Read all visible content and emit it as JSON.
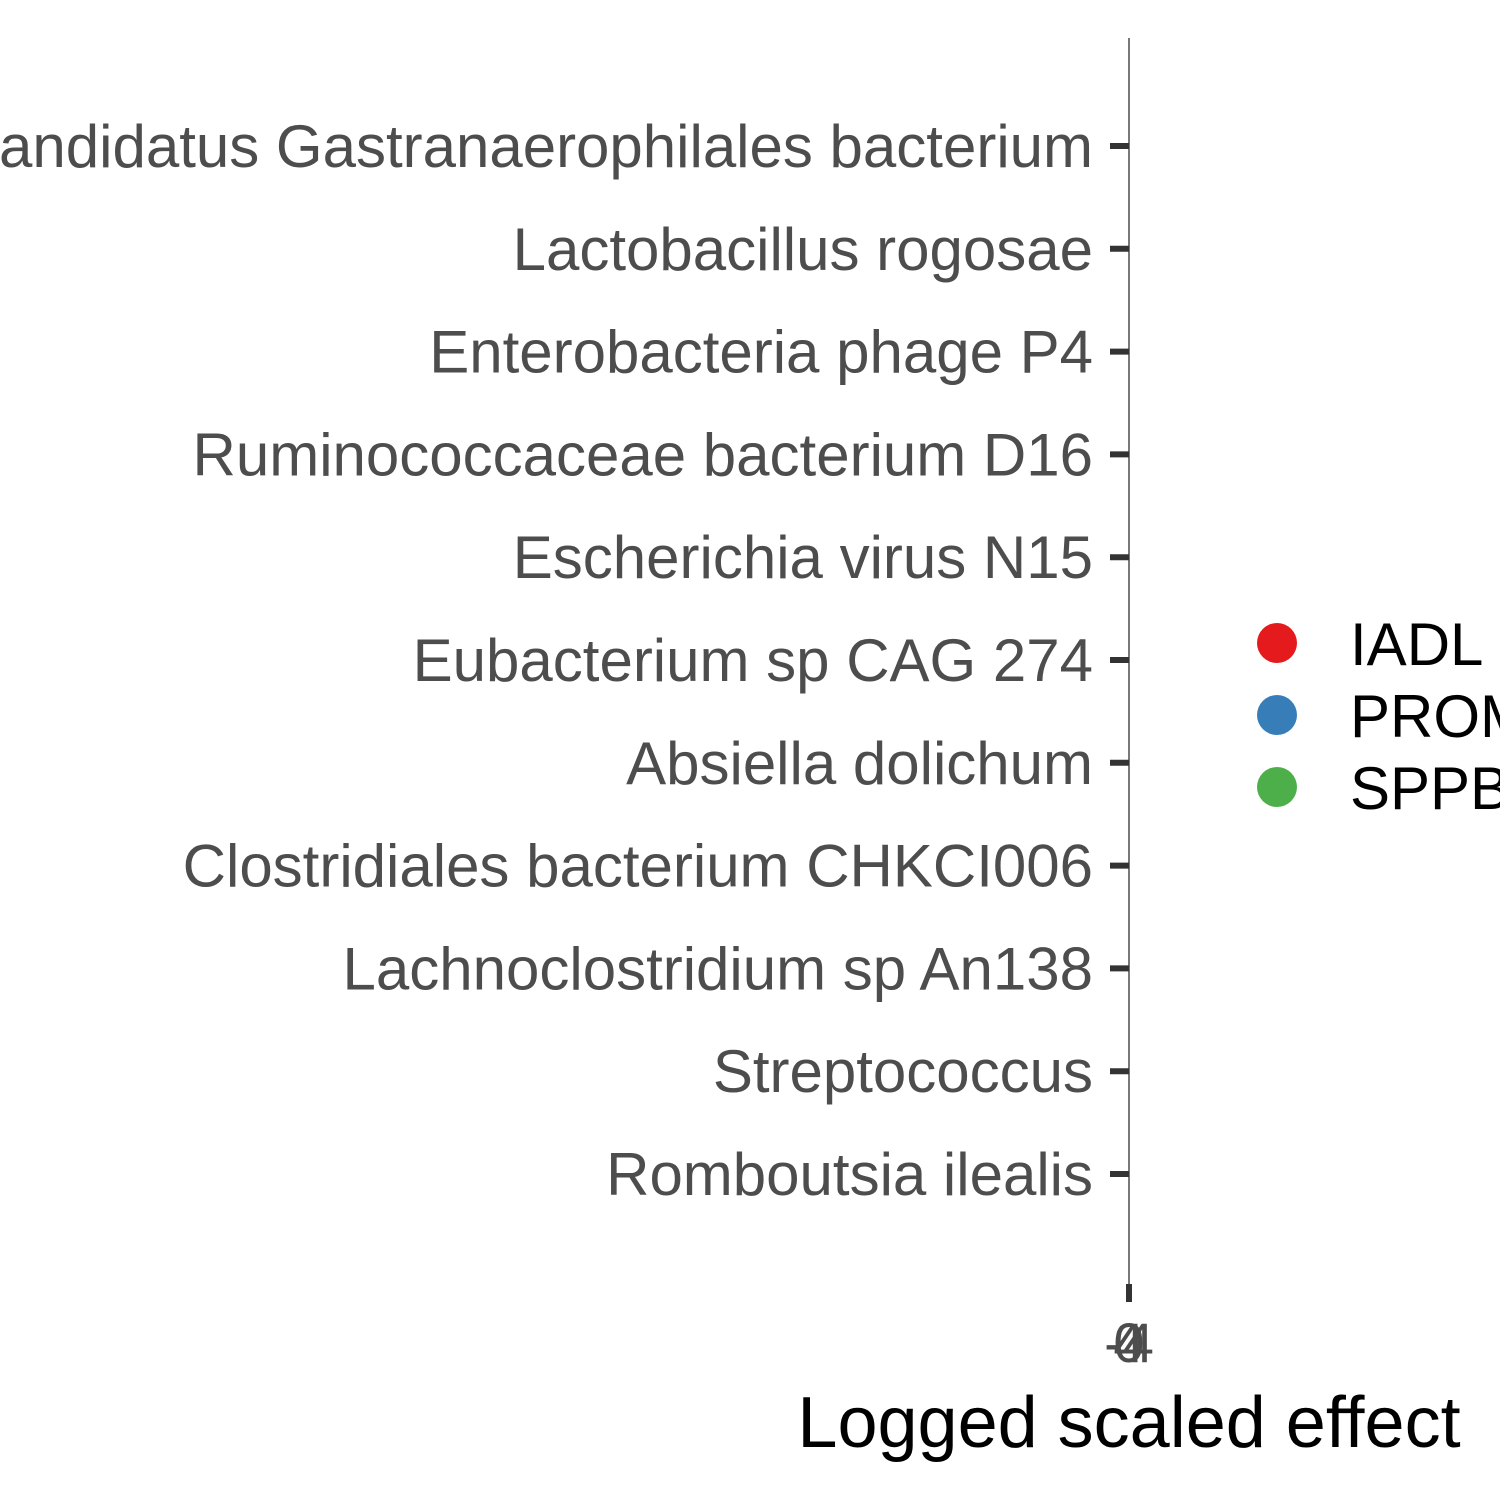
{
  "chart_data": {
    "type": "scatter",
    "orientation": "horizontal",
    "categories": [
      "Candidatus Gastranaerophilales bacterium",
      "Lactobacillus rogosae",
      "Enterobacteria phage P4",
      "Ruminococcaceae bacterium D16",
      "Escherichia virus N15",
      "Eubacterium sp CAG 274",
      "Absiella dolichum",
      "Clostridiales bacterium CHKCI006",
      "Lachnoclostridium sp An138",
      "Streptococcus",
      "Romboutsia ilealis"
    ],
    "x_tick_labels": [
      "-4",
      "0",
      "4"
    ],
    "xlabel": "Logged scaled effect",
    "ylabel": "",
    "series": [
      {
        "name": "IADL",
        "color": "#e41a1c",
        "values": []
      },
      {
        "name": "PROMIS",
        "color": "#377eb8",
        "values": []
      },
      {
        "name": "SPPB",
        "color": "#4daf4a",
        "values": []
      }
    ],
    "grid": false,
    "legend_position": "right",
    "zero_line": true
  }
}
